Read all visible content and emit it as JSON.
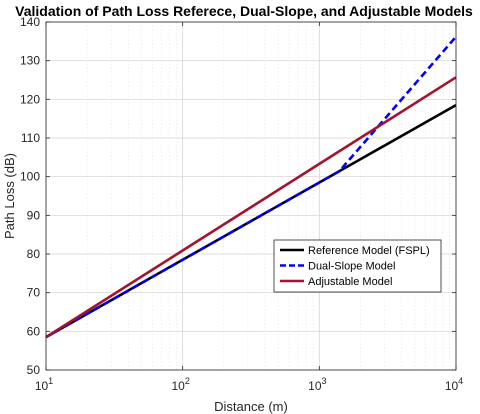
{
  "chart_data": {
    "type": "line",
    "title": "Validation of Path Loss Referece, Dual-Slope, and Adjustable Models",
    "xlabel": "Distance (m)",
    "ylabel": "Path Loss (dB)",
    "xscale": "log",
    "xlim": [
      10,
      10000
    ],
    "ylim": [
      50,
      140
    ],
    "xticks": [
      {
        "base": "10",
        "exp": "1"
      },
      {
        "base": "10",
        "exp": "2"
      },
      {
        "base": "10",
        "exp": "3"
      },
      {
        "base": "10",
        "exp": "4"
      }
    ],
    "yticks": [
      "50",
      "60",
      "70",
      "80",
      "90",
      "100",
      "110",
      "120",
      "130",
      "140"
    ],
    "grid": "major and minor",
    "legend_position": "center-right",
    "series": [
      {
        "name": "Reference Model (FSPL)",
        "color": "#000000",
        "style": "solid",
        "x": [
          10,
          100,
          1000,
          10000
        ],
        "y": [
          58.5,
          78.5,
          98.5,
          118.5
        ]
      },
      {
        "name": "Dual-Slope Model",
        "color": "#0000ff",
        "style": "dashed",
        "x": [
          10,
          100,
          1000,
          1400,
          10000
        ],
        "y": [
          58.5,
          78.5,
          98.5,
          101.4,
          136.2
        ]
      },
      {
        "name": "Adjustable Model",
        "color": "#a2142f",
        "style": "solid",
        "x": [
          10,
          100,
          1000,
          10000
        ],
        "y": [
          58.5,
          80.9,
          103.3,
          125.7
        ]
      }
    ]
  }
}
